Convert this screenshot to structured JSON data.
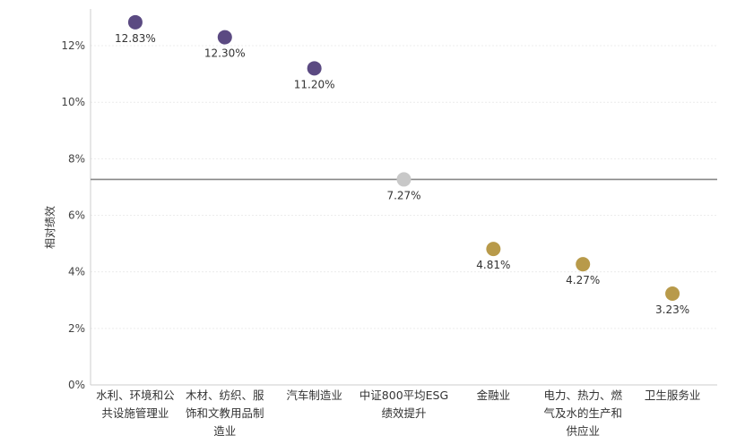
{
  "chart_data": {
    "type": "scatter",
    "title": "",
    "xlabel": "",
    "ylabel": "相对绩效",
    "ylim": [
      0,
      0.133
    ],
    "yticks": [
      0,
      0.02,
      0.04,
      0.06,
      0.08,
      0.1,
      0.12
    ],
    "ytick_labels": [
      "0%",
      "2%",
      "4%",
      "6%",
      "8%",
      "10%",
      "12%"
    ],
    "grid": true,
    "reference_line": {
      "value": 0.0727
    },
    "categories": [
      [
        "水利、环境和公",
        "共设施管理业"
      ],
      [
        "木材、纺织、服",
        "饰和文教用品制",
        "造业"
      ],
      [
        "汽车制造业"
      ],
      [
        "中证800平均ESG",
        "绩效提升"
      ],
      [
        "金融业"
      ],
      [
        "电力、热力、燃",
        "气及水的生产和",
        "供应业"
      ],
      [
        "卫生服务业"
      ]
    ],
    "values": [
      0.1283,
      0.123,
      0.112,
      0.0727,
      0.0481,
      0.0427,
      0.0323
    ],
    "value_labels": [
      "12.83%",
      "12.30%",
      "11.20%",
      "7.27%",
      "4.81%",
      "4.27%",
      "3.23%"
    ],
    "point_colors": [
      "#5b4a82",
      "#5b4a82",
      "#5b4a82",
      "#c8c8c8",
      "#b89a4a",
      "#b89a4a",
      "#b89a4a"
    ]
  }
}
